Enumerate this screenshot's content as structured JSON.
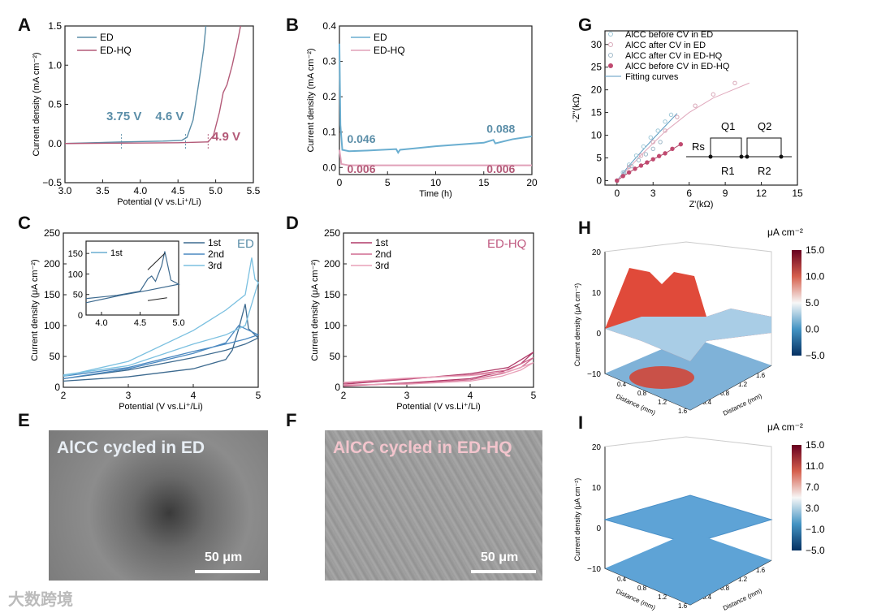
{
  "panel_labels": [
    "A",
    "B",
    "C",
    "D",
    "E",
    "F",
    "G",
    "H",
    "I"
  ],
  "watermark": "大数跨境",
  "chart_data": [
    {
      "id": "A",
      "type": "line",
      "xlabel": "Potential (V vs.Li⁺/Li)",
      "ylabel": "Current density (mA cm⁻²)",
      "xlim": [
        3.0,
        5.5
      ],
      "ylim": [
        -0.5,
        1.5
      ],
      "xticks": [
        "3.0",
        "3.5",
        "4.0",
        "4.5",
        "5.0",
        "5.5"
      ],
      "yticks": [
        "-0.5",
        "0.0",
        "0.5",
        "1.0",
        "1.5"
      ],
      "legend": "top-left",
      "series": [
        {
          "name": "ED",
          "color": "#5b8ea8",
          "points": [
            [
              3.0,
              0.0
            ],
            [
              3.75,
              0.02
            ],
            [
              4.3,
              0.03
            ],
            [
              4.55,
              0.04
            ],
            [
              4.62,
              0.08
            ],
            [
              4.7,
              0.3
            ],
            [
              4.78,
              0.8
            ],
            [
              4.84,
              1.2
            ],
            [
              4.87,
              1.5
            ]
          ]
        },
        {
          "name": "ED-HQ",
          "color": "#b35a78",
          "points": [
            [
              3.0,
              0.0
            ],
            [
              4.5,
              0.01
            ],
            [
              4.9,
              0.02
            ],
            [
              4.97,
              0.1
            ],
            [
              5.05,
              0.4
            ],
            [
              5.1,
              0.65
            ],
            [
              5.15,
              0.75
            ],
            [
              5.22,
              1.0
            ],
            [
              5.3,
              1.35
            ],
            [
              5.33,
              1.5
            ]
          ]
        }
      ],
      "annotations": [
        {
          "text": "3.75 V",
          "x": 3.75,
          "color": "#5b8ea8"
        },
        {
          "text": "4.6 V",
          "x": 4.6,
          "color": "#5b8ea8"
        },
        {
          "text": "4.9 V",
          "x": 4.9,
          "color": "#b35a78"
        }
      ]
    },
    {
      "id": "B",
      "type": "line",
      "xlabel": "Time (h)",
      "ylabel": "Current density (mA cm⁻²)",
      "xlim": [
        0,
        20
      ],
      "ylim": [
        -0.02,
        0.4
      ],
      "xticks": [
        "0",
        "5",
        "10",
        "15",
        "20"
      ],
      "yticks": [
        "0.0",
        "0.1",
        "0.2",
        "0.3",
        "0.4"
      ],
      "legend": "top-left",
      "series": [
        {
          "name": "ED",
          "color": "#6aaed0",
          "points": [
            [
              0,
              0.35
            ],
            [
              0.1,
              0.12
            ],
            [
              0.3,
              0.05
            ],
            [
              1,
              0.046
            ],
            [
              3,
              0.048
            ],
            [
              5.9,
              0.052
            ],
            [
              6.1,
              0.042
            ],
            [
              6.3,
              0.05
            ],
            [
              10,
              0.06
            ],
            [
              15,
              0.07
            ],
            [
              16,
              0.078
            ],
            [
              16.2,
              0.068
            ],
            [
              18,
              0.08
            ],
            [
              20,
              0.088
            ]
          ]
        },
        {
          "name": "ED-HQ",
          "color": "#e0a0b8",
          "points": [
            [
              0,
              0.05
            ],
            [
              0.2,
              0.01
            ],
            [
              1,
              0.006
            ],
            [
              10,
              0.006
            ],
            [
              20,
              0.006
            ]
          ]
        }
      ],
      "annotations": [
        {
          "text": "0.046",
          "color": "#5b8ea8"
        },
        {
          "text": "0.088",
          "color": "#5b8ea8"
        },
        {
          "text": "0.006",
          "color": "#b35a78"
        },
        {
          "text": "0.006",
          "color": "#b35a78"
        }
      ]
    },
    {
      "id": "C",
      "type": "line",
      "title": "ED",
      "xlabel": "Potential (V vs.Li⁺/Li)",
      "ylabel": "Current density (μA cm⁻²)",
      "xlim": [
        2,
        5
      ],
      "ylim": [
        0,
        250
      ],
      "xticks": [
        "2",
        "3",
        "4",
        "5"
      ],
      "yticks": [
        "0",
        "50",
        "100",
        "150",
        "200",
        "250"
      ],
      "legend": "top-right",
      "series": [
        {
          "name": "1st",
          "color": "#3d6a8f",
          "points": [
            [
              2,
              10
            ],
            [
              3,
              17
            ],
            [
              4,
              30
            ],
            [
              4.5,
              45
            ],
            [
              4.6,
              60
            ],
            [
              4.7,
              95
            ],
            [
              4.8,
              135
            ],
            [
              4.85,
              95
            ],
            [
              4.95,
              85
            ],
            [
              5,
              80
            ],
            [
              4.8,
              70
            ],
            [
              4.5,
              60
            ],
            [
              4,
              48
            ],
            [
              3,
              28
            ],
            [
              2,
              14
            ]
          ]
        },
        {
          "name": "2nd",
          "color": "#4a88c0",
          "points": [
            [
              2,
              14
            ],
            [
              3,
              30
            ],
            [
              4,
              55
            ],
            [
              4.5,
              72
            ],
            [
              4.7,
              100
            ],
            [
              4.8,
              95
            ],
            [
              4.9,
              90
            ],
            [
              5,
              85
            ],
            [
              4.8,
              78
            ],
            [
              4.5,
              70
            ],
            [
              4,
              58
            ],
            [
              3,
              32
            ],
            [
              2,
              18
            ]
          ]
        },
        {
          "name": "3rd",
          "color": "#7bc0e0",
          "points": [
            [
              2,
              18
            ],
            [
              3,
              42
            ],
            [
              4,
              92
            ],
            [
              4.5,
              125
            ],
            [
              4.8,
              150
            ],
            [
              4.9,
              210
            ],
            [
              4.95,
              175
            ],
            [
              5,
              170
            ],
            [
              4.8,
              100
            ],
            [
              4.5,
              85
            ],
            [
              4,
              70
            ],
            [
              3,
              35
            ],
            [
              2,
              20
            ]
          ]
        }
      ],
      "inset": {
        "xlim": [
          3.8,
          5.0
        ],
        "ylim": [
          0,
          180
        ],
        "xticks": [
          "4.0",
          "4.5",
          "5.0"
        ],
        "yticks": [
          "0",
          "50",
          "100",
          "150"
        ],
        "legend": "1st",
        "series": [
          {
            "name": "1st",
            "color": "#3d6a8f",
            "points": [
              [
                3.8,
                40
              ],
              [
                4.2,
                48
              ],
              [
                4.5,
                58
              ],
              [
                4.6,
                88
              ],
              [
                4.65,
                95
              ],
              [
                4.7,
                82
              ],
              [
                4.78,
                120
              ],
              [
                4.82,
                155
              ],
              [
                4.9,
                85
              ],
              [
                5.0,
                75
              ],
              [
                4.6,
                60
              ],
              [
                4.3,
                50
              ],
              [
                3.8,
                30
              ]
            ]
          }
        ]
      }
    },
    {
      "id": "D",
      "type": "line",
      "title": "ED-HQ",
      "xlabel": "Potential (V vs.Li⁺/Li)",
      "ylabel": "Current density (μA cm⁻²)",
      "xlim": [
        2,
        5
      ],
      "ylim": [
        0,
        250
      ],
      "xticks": [
        "2",
        "3",
        "4",
        "5"
      ],
      "yticks": [
        "0",
        "50",
        "100",
        "150",
        "200",
        "250"
      ],
      "legend": "top-left",
      "series": [
        {
          "name": "1st",
          "color": "#b03a68",
          "points": [
            [
              2,
              5
            ],
            [
              3,
              13
            ],
            [
              4,
              22
            ],
            [
              4.6,
              32
            ],
            [
              5,
              57
            ],
            [
              4.8,
              38
            ],
            [
              4.5,
              25
            ],
            [
              4,
              14
            ],
            [
              3,
              7
            ],
            [
              2,
              2
            ]
          ]
        },
        {
          "name": "2nd",
          "color": "#d06a90",
          "points": [
            [
              2,
              7
            ],
            [
              3,
              14
            ],
            [
              4,
              20
            ],
            [
              4.6,
              28
            ],
            [
              5,
              48
            ],
            [
              4.8,
              32
            ],
            [
              4.5,
              22
            ],
            [
              4,
              12
            ],
            [
              3,
              6
            ],
            [
              2,
              3
            ]
          ]
        },
        {
          "name": "3rd",
          "color": "#e8a0b8",
          "points": [
            [
              2,
              8
            ],
            [
              3,
              15
            ],
            [
              4,
              19
            ],
            [
              4.6,
              25
            ],
            [
              5,
              40
            ],
            [
              4.8,
              28
            ],
            [
              4.5,
              18
            ],
            [
              4,
              10
            ],
            [
              3,
              5
            ],
            [
              2,
              4
            ]
          ]
        }
      ]
    },
    {
      "id": "G",
      "type": "scatter",
      "xlabel": "Z'(kΩ)",
      "ylabel": "-Z''(kΩ)",
      "xlim": [
        -1,
        15
      ],
      "ylim": [
        -1,
        33
      ],
      "xticks": [
        "0",
        "3",
        "6",
        "9",
        "12",
        "15"
      ],
      "yticks": [
        "0",
        "5",
        "10",
        "15",
        "20",
        "25",
        "30"
      ],
      "legend": "top-left",
      "series": [
        {
          "name": "AlCC before CV in ED",
          "color": "#9fc8d8",
          "marker": "circle",
          "points": [
            [
              0,
              0
            ],
            [
              0.5,
              1.8
            ],
            [
              1,
              3.5
            ],
            [
              1.6,
              5.5
            ],
            [
              2.2,
              7.5
            ],
            [
              2.8,
              9.5
            ],
            [
              3.4,
              11
            ],
            [
              4,
              13
            ],
            [
              4.5,
              14.5
            ]
          ]
        },
        {
          "name": "AlCC after CV in ED",
          "color": "#d8a8b8",
          "marker": "diamond",
          "points": [
            [
              0,
              0
            ],
            [
              1,
              3
            ],
            [
              2,
              5.5
            ],
            [
              3,
              8.5
            ],
            [
              4,
              11
            ],
            [
              5,
              14
            ],
            [
              6.5,
              16.5
            ],
            [
              8,
              19
            ],
            [
              9.8,
              21.5
            ]
          ]
        },
        {
          "name": "AlCC after CV in ED-HQ",
          "color": "#9fb8c8",
          "marker": "star",
          "points": [
            [
              0,
              0
            ],
            [
              0.6,
              1.8
            ],
            [
              1.2,
              3.2
            ],
            [
              1.8,
              4.5
            ],
            [
              2.4,
              5.8
            ],
            [
              3,
              7
            ],
            [
              3.6,
              8.5
            ]
          ]
        },
        {
          "name": "AlCC before CV in ED-HQ",
          "color": "#c04a70",
          "marker": "triangle",
          "points": [
            [
              0,
              0
            ],
            [
              0.5,
              1
            ],
            [
              1,
              1.8
            ],
            [
              1.5,
              2.6
            ],
            [
              2,
              3.3
            ],
            [
              2.5,
              4
            ],
            [
              3,
              4.7
            ],
            [
              3.5,
              5.4
            ],
            [
              4,
              6
            ],
            [
              4.6,
              7
            ],
            [
              5.3,
              8
            ]
          ]
        }
      ],
      "fits": [
        {
          "name": "Fitting curves",
          "color": "#5b9ac0",
          "points": [
            [
              0,
              0
            ],
            [
              1,
              3.3
            ],
            [
              2,
              6.3
            ],
            [
              3,
              9.2
            ],
            [
              4,
              12
            ],
            [
              5,
              14.8
            ]
          ]
        },
        {
          "color": "#e0a8bc",
          "points": [
            [
              0,
              0
            ],
            [
              2,
              5.6
            ],
            [
              4,
              10.8
            ],
            [
              6,
              15
            ],
            [
              8,
              18.2
            ],
            [
              11,
              21.5
            ]
          ]
        },
        {
          "color": "#b04a6a",
          "points": [
            [
              0,
              0
            ],
            [
              1,
              1.8
            ],
            [
              2,
              3.3
            ],
            [
              3,
              4.7
            ],
            [
              4,
              6
            ],
            [
              5.3,
              8
            ]
          ]
        }
      ],
      "circuit": {
        "labels": [
          "Rs",
          "Q1",
          "R1",
          "Q2",
          "R2"
        ]
      }
    },
    {
      "id": "H",
      "type": "heatmap",
      "ylabel": "Current density (μA cm⁻²)",
      "xlabel": "Distance (mm)",
      "ylabel2": "Distance (mm)",
      "zlim": [
        -10,
        20
      ],
      "zticks": [
        "20",
        "10",
        "0",
        "-10"
      ],
      "xticks": [
        "0.4",
        "0.8",
        "1.2",
        "1.6"
      ],
      "yticks": [
        "0.4",
        "0.8",
        "1.2",
        "1.6"
      ],
      "colorbar": {
        "unit": "μA cm⁻²",
        "range": [
          -5,
          15
        ],
        "ticks": [
          "15.0",
          "10.0",
          "5.0",
          "0.0",
          "-5.0"
        ]
      }
    },
    {
      "id": "I",
      "type": "heatmap",
      "ylabel": "Current density (μA cm⁻²)",
      "xlabel": "Distance (mm)",
      "ylabel2": "Distance (mm)",
      "zlim": [
        -10,
        20
      ],
      "zticks": [
        "20",
        "10",
        "0",
        "-10"
      ],
      "xticks": [
        "0.4",
        "0.8",
        "1.2",
        "1.6"
      ],
      "yticks": [
        "0.4",
        "0.8",
        "1.2",
        "1.6"
      ],
      "colorbar": {
        "unit": "μA cm⁻²",
        "range": [
          -5,
          15
        ],
        "ticks": [
          "15.0",
          "11.0",
          "7.0",
          "3.0",
          "-1.0",
          "-5.0"
        ]
      }
    }
  ],
  "images": {
    "E": {
      "caption": "AlCC cycled in ED",
      "scale": "50 μm"
    },
    "F": {
      "caption": "AlCC cycled in ED-HQ",
      "scale": "50 μm"
    }
  }
}
